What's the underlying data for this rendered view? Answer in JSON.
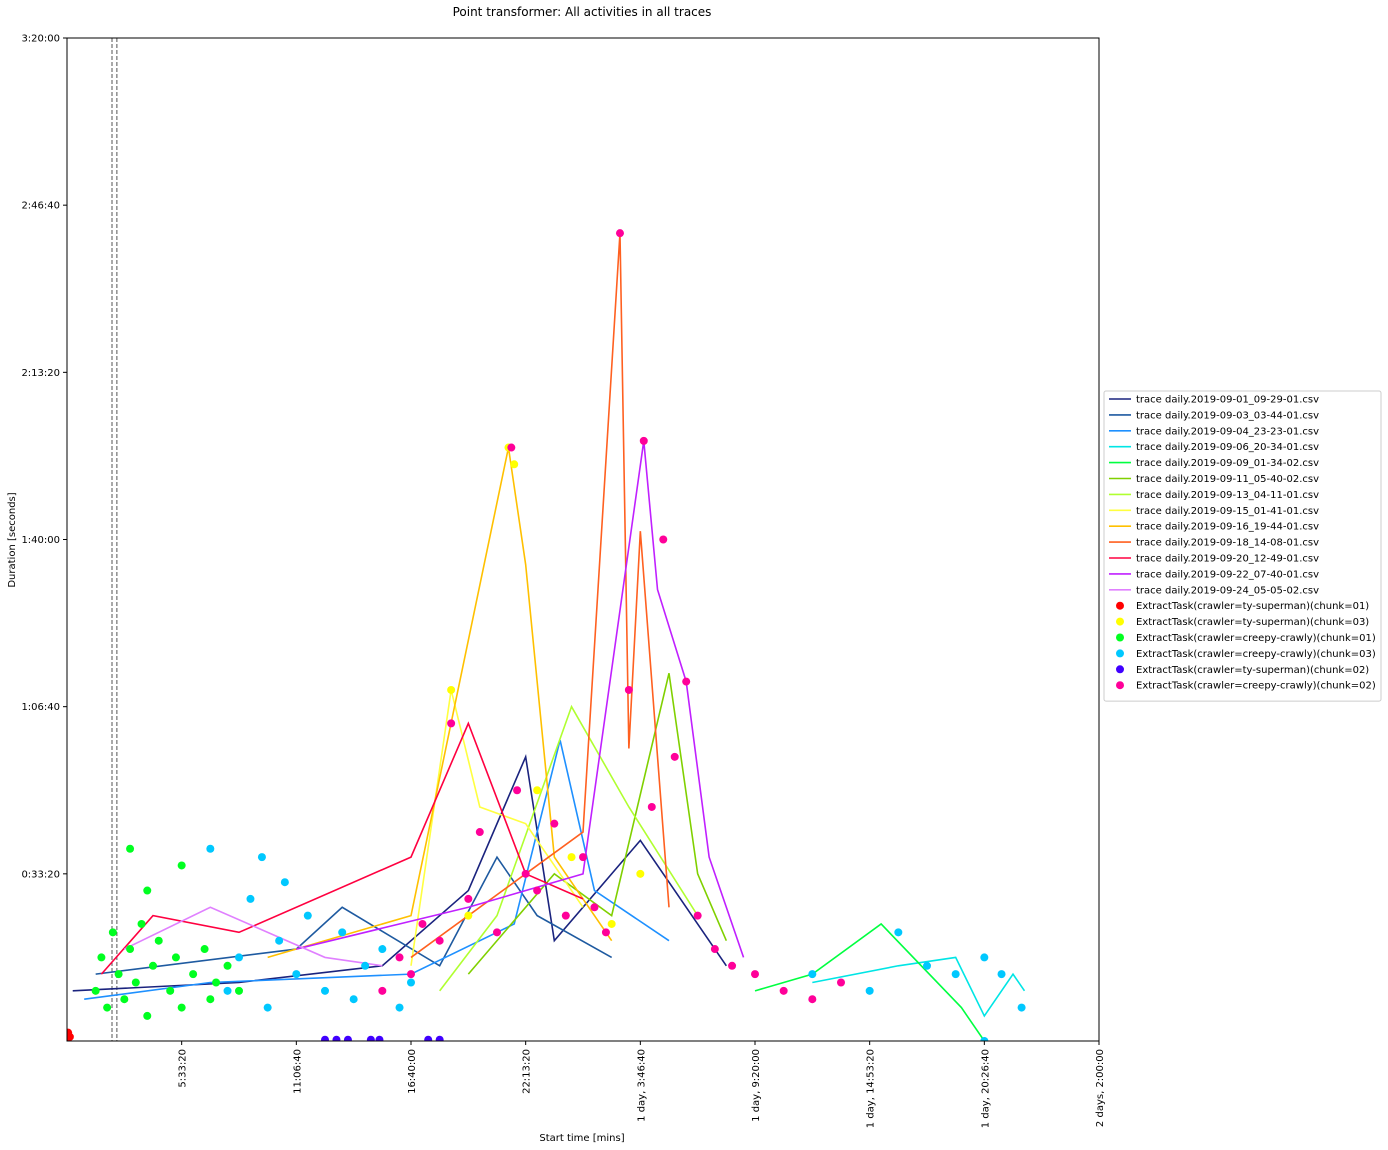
{
  "chart_data": {
    "type": "line",
    "title": "Point transformer: All activities in all traces",
    "xlabel": "Start time [mins]",
    "ylabel": "Duration [seconds]",
    "xlim": [
      0,
      180000
    ],
    "ylim": [
      0,
      12000
    ],
    "xticks": [
      {
        "value": 20000,
        "label": "5:33:20"
      },
      {
        "value": 40000,
        "label": "11:06:40"
      },
      {
        "value": 60000,
        "label": "16:40:00"
      },
      {
        "value": 80000,
        "label": "22:13:20"
      },
      {
        "value": 100000,
        "label": "1 day, 3:46:40"
      },
      {
        "value": 120000,
        "label": "1 day, 9:20:00"
      },
      {
        "value": 140000,
        "label": "1 day, 14:53:20"
      },
      {
        "value": 160000,
        "label": "1 day, 20:26:40"
      },
      {
        "value": 180000,
        "label": "2 days, 2:00:00"
      }
    ],
    "yticks": [
      {
        "value": 2000,
        "label": "0:33:20"
      },
      {
        "value": 4000,
        "label": "1:06:40"
      },
      {
        "value": 6000,
        "label": "1:40:00"
      },
      {
        "value": 8000,
        "label": "2:13:20"
      },
      {
        "value": 10000,
        "label": "2:46:40"
      },
      {
        "value": 12000,
        "label": "3:20:00"
      }
    ],
    "vlines": [
      7850,
      8700
    ],
    "vline_color": "#555555",
    "legend": "right",
    "series": [
      {
        "name": "trace daily.2019-09-01_09-29-01.csv",
        "kind": "line",
        "color": "#1a237e",
        "x": [
          1000,
          30000,
          55000,
          70000,
          80000,
          85000,
          100000,
          115000
        ],
        "values": [
          600,
          700,
          900,
          1800,
          3400,
          1200,
          2400,
          900
        ]
      },
      {
        "name": "trace daily.2019-09-03_03-44-01.csv",
        "kind": "line",
        "color": "#1e5aa0",
        "x": [
          5000,
          40000,
          48000,
          65000,
          75000,
          82000,
          95000
        ],
        "values": [
          800,
          1100,
          1600,
          900,
          2200,
          1500,
          1000
        ]
      },
      {
        "name": "trace daily.2019-09-04_23-23-01.csv",
        "kind": "line",
        "color": "#1e90ff",
        "x": [
          3000,
          25000,
          60000,
          78000,
          86000,
          92000,
          105000
        ],
        "values": [
          500,
          700,
          800,
          1400,
          3600,
          1800,
          1200
        ]
      },
      {
        "name": "trace daily.2019-09-06_20-34-01.csv",
        "kind": "line",
        "color": "#00e5e5",
        "x": [
          130000,
          145000,
          155000,
          160000,
          165000,
          167000
        ],
        "values": [
          700,
          900,
          1000,
          300,
          800,
          600
        ]
      },
      {
        "name": "trace daily.2019-09-09_01-34-02.csv",
        "kind": "line",
        "color": "#00ff40",
        "x": [
          120000,
          130000,
          142000,
          156000,
          160000
        ],
        "values": [
          600,
          800,
          1400,
          400,
          0
        ]
      },
      {
        "name": "trace daily.2019-09-11_05-40-02.csv",
        "kind": "line",
        "color": "#80d000",
        "x": [
          70000,
          85000,
          95000,
          105000,
          110000,
          115000
        ],
        "values": [
          800,
          2000,
          1500,
          4400,
          2000,
          1200
        ]
      },
      {
        "name": "trace daily.2019-09-13_04-11-01.csv",
        "kind": "line",
        "color": "#b0ff30",
        "x": [
          65000,
          75000,
          88000,
          98000,
          110000
        ],
        "values": [
          600,
          1500,
          4000,
          2800,
          1500
        ]
      },
      {
        "name": "trace daily.2019-09-15_01-41-01.csv",
        "kind": "line",
        "color": "#ffff40",
        "x": [
          60000,
          67000,
          72000,
          80000,
          90000
        ],
        "values": [
          900,
          4200,
          2800,
          2600,
          1600
        ]
      },
      {
        "name": "trace daily.2019-09-16_19-44-01.csv",
        "kind": "line",
        "color": "#ffc000",
        "x": [
          35000,
          60000,
          77000,
          80000,
          85000,
          95000
        ],
        "values": [
          1000,
          1500,
          7100,
          5700,
          2200,
          1200
        ]
      },
      {
        "name": "trace daily.2019-09-18_14-08-01.csv",
        "kind": "line",
        "color": "#ff6020",
        "x": [
          60000,
          80000,
          90000,
          96450,
          98000,
          100000,
          105000
        ],
        "values": [
          1000,
          2000,
          2500,
          9665,
          3500,
          6100,
          1600
        ]
      },
      {
        "name": "trace daily.2019-09-20_12-49-01.csv",
        "kind": "line",
        "color": "#ff0040",
        "x": [
          6000,
          15000,
          30000,
          60000,
          70000,
          80000,
          90000
        ],
        "values": [
          800,
          1500,
          1300,
          2200,
          3800,
          2000,
          1700
        ]
      },
      {
        "name": "trace daily.2019-09-22_07-40-01.csv",
        "kind": "line",
        "color": "#c020ff",
        "x": [
          40000,
          70000,
          90000,
          100600,
          103000,
          108000,
          112000,
          118000
        ],
        "values": [
          1100,
          1600,
          2000,
          7180,
          5400,
          4300,
          2200,
          1000
        ]
      },
      {
        "name": "trace daily.2019-09-24_05-05-02.csv",
        "kind": "line",
        "color": "#e080ff",
        "x": [
          10000,
          25000,
          45000,
          55000
        ],
        "values": [
          1100,
          1600,
          1000,
          900
        ]
      },
      {
        "name": "ExtractTask(crawler=ty-superman)(chunk=01)",
        "kind": "scatter",
        "color": "#ff0000",
        "x": [
          0,
          200,
          500
        ],
        "values": [
          0,
          100,
          50
        ]
      },
      {
        "name": "ExtractTask(crawler=ty-superman)(chunk=03)",
        "kind": "scatter",
        "color": "#ffff00",
        "x": [
          67000,
          70000,
          77000,
          78000,
          82000,
          88000,
          95000,
          100000
        ],
        "values": [
          4200,
          1500,
          7100,
          6900,
          3000,
          2200,
          1400,
          2000
        ]
      },
      {
        "name": "ExtractTask(crawler=creepy-crawly)(chunk=01)",
        "kind": "scatter",
        "color": "#00ff20",
        "x": [
          5000,
          6000,
          7000,
          8000,
          9000,
          10000,
          11000,
          12000,
          13000,
          14000,
          15000,
          16000,
          18000,
          19000,
          20000,
          22000,
          24000,
          25000,
          26000,
          28000,
          30000,
          11000,
          14000,
          20000
        ],
        "values": [
          600,
          1000,
          400,
          1300,
          800,
          500,
          1100,
          700,
          1400,
          300,
          900,
          1200,
          600,
          1000,
          400,
          800,
          1100,
          500,
          700,
          900,
          600,
          2300,
          1800,
          2100
        ]
      },
      {
        "name": "ExtractTask(crawler=creepy-crawly)(chunk=03)",
        "kind": "scatter",
        "color": "#00c8ff",
        "x": [
          25000,
          28000,
          30000,
          32000,
          35000,
          37000,
          40000,
          42000,
          45000,
          48000,
          50000,
          52000,
          55000,
          58000,
          60000,
          34000,
          38000,
          130000,
          140000,
          145000,
          150000,
          155000,
          160000,
          160000,
          163000,
          166500
        ],
        "values": [
          2300,
          600,
          1000,
          1700,
          400,
          1200,
          800,
          1500,
          600,
          1300,
          500,
          900,
          1100,
          400,
          700,
          2200,
          1900,
          800,
          600,
          1300,
          900,
          800,
          0,
          1000,
          800,
          400
        ]
      },
      {
        "name": "ExtractTask(crawler=ty-superman)(chunk=02)",
        "kind": "scatter",
        "color": "#4000ff",
        "x": [
          45000,
          47000,
          49000,
          53000,
          54500,
          63000,
          65000
        ],
        "values": [
          15,
          15,
          15,
          15,
          15,
          15,
          15
        ]
      },
      {
        "name": "ExtractTask(crawler=creepy-crawly)(chunk=02)",
        "kind": "scatter",
        "color": "#ff0099",
        "x": [
          55000,
          58000,
          60000,
          62000,
          65000,
          67000,
          70000,
          72000,
          75000,
          77500,
          78500,
          80000,
          82000,
          85000,
          87000,
          90000,
          92000,
          94000,
          96450,
          98000,
          100600,
          102000,
          104000,
          106000,
          108000,
          110000,
          113000,
          116000,
          120000,
          125000,
          130000,
          135000
        ],
        "values": [
          600,
          1000,
          800,
          1400,
          1200,
          3800,
          1700,
          2500,
          1300,
          7100,
          3000,
          2000,
          1800,
          2600,
          1500,
          2200,
          1600,
          1300,
          9665,
          4200,
          7180,
          2800,
          6000,
          3400,
          4300,
          1500,
          1100,
          900,
          800,
          600,
          500,
          700
        ]
      }
    ]
  }
}
